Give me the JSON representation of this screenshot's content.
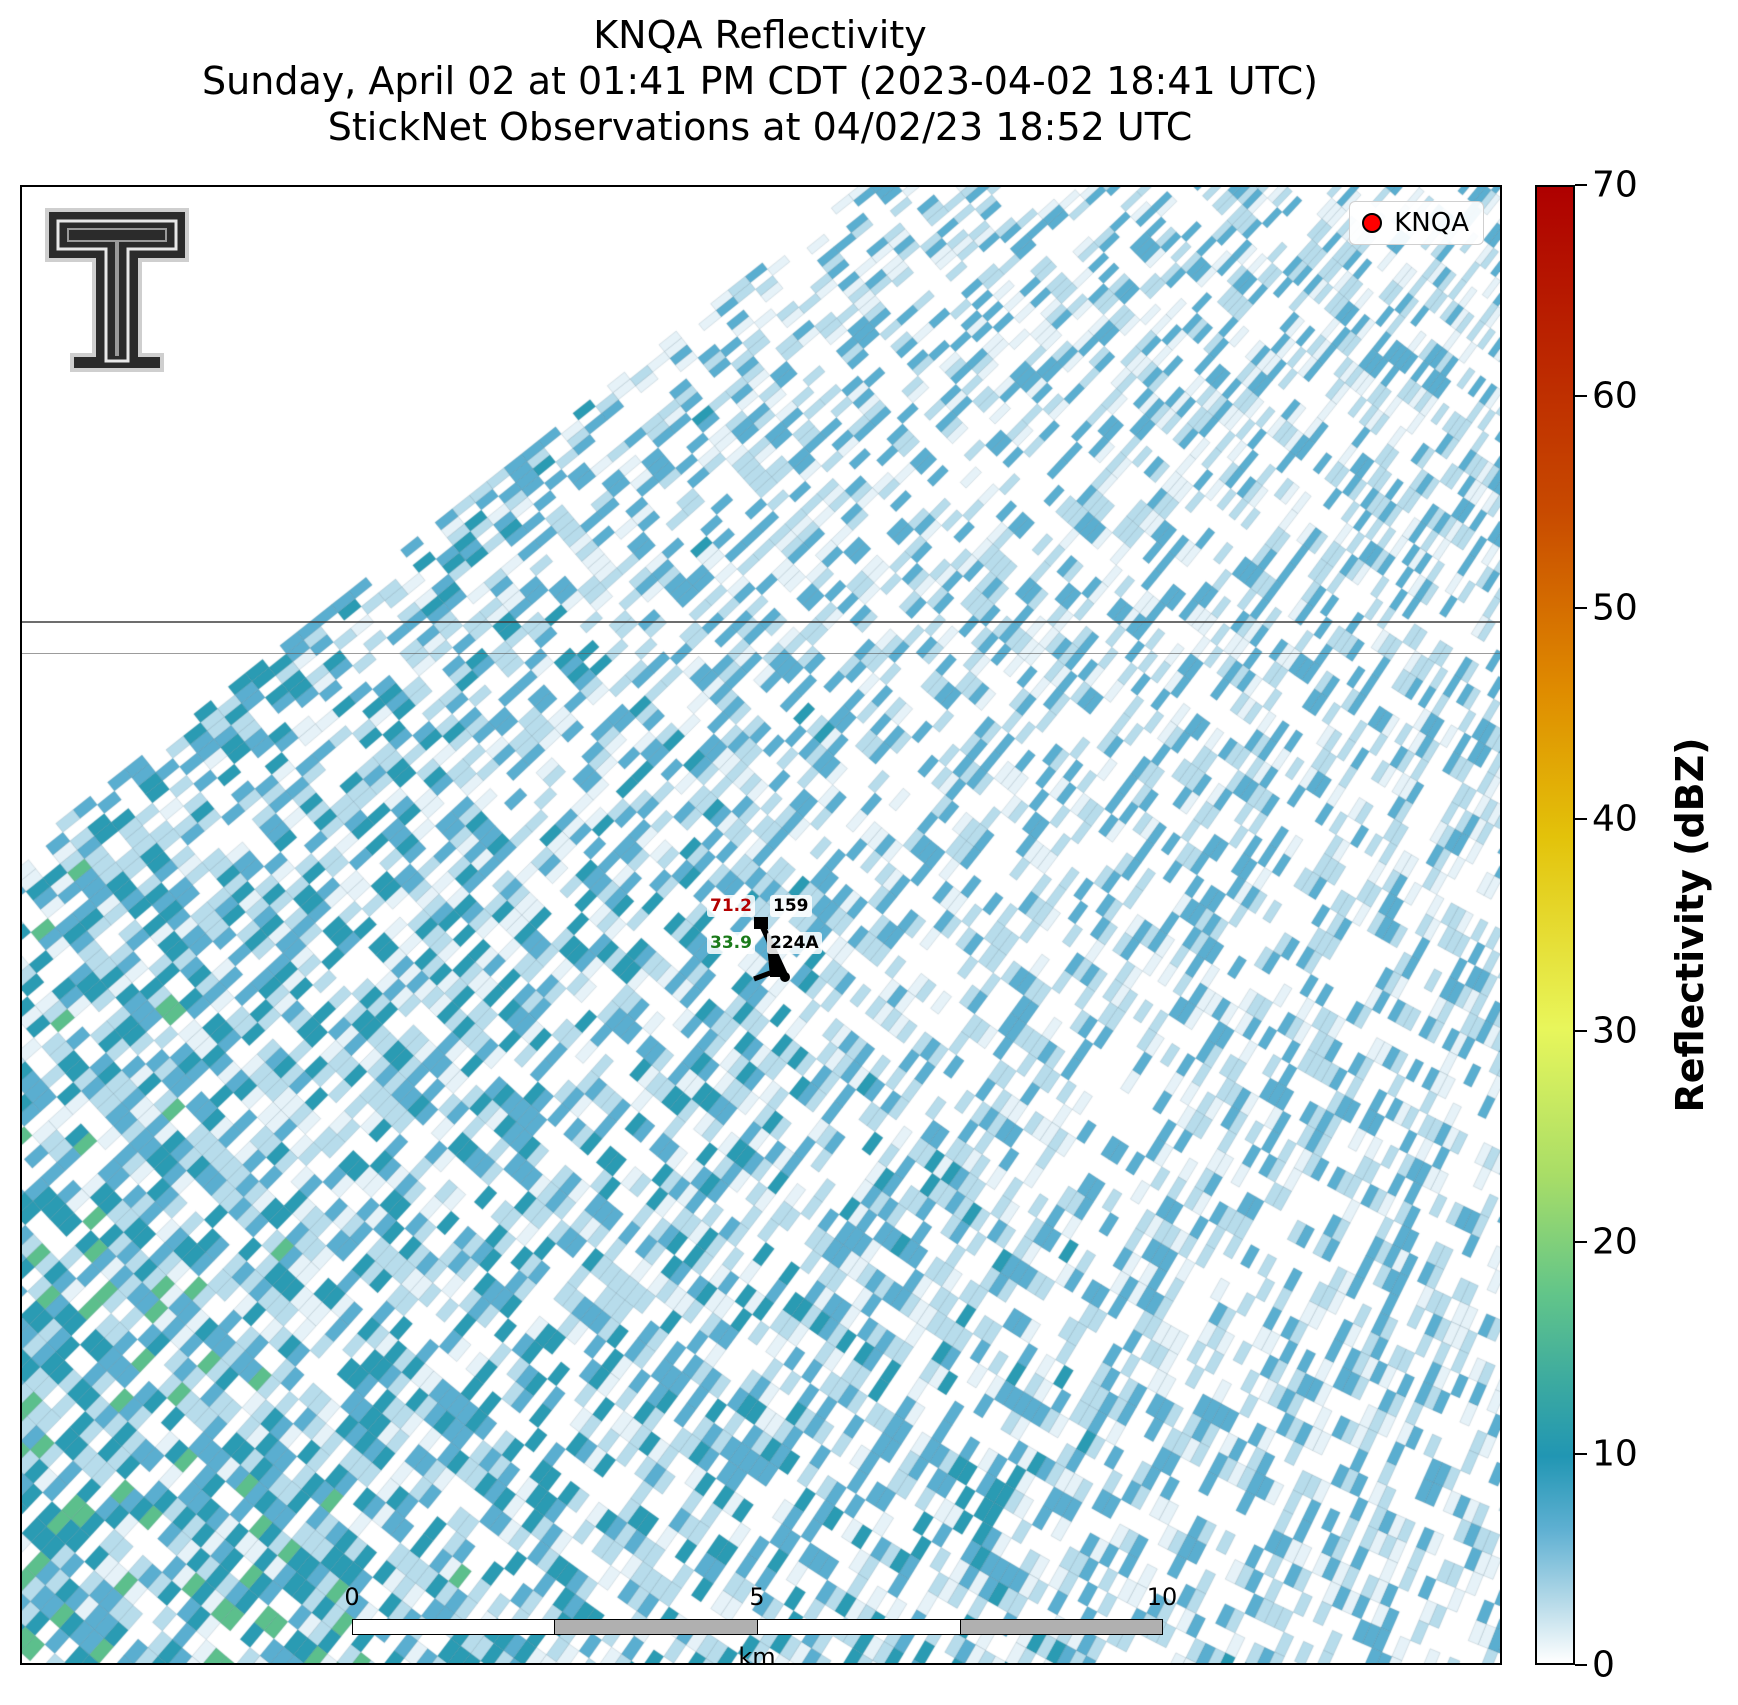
{
  "title": {
    "line1": "KNQA Reflectivity",
    "line2": "Sunday, April 02 at 01:41 PM CDT (2023-04-02 18:41 UTC)",
    "line3": "StickNet Observations at 04/02/23 18:52 UTC"
  },
  "legend": {
    "label": "KNQA",
    "marker_color": "#ff0000"
  },
  "station": {
    "temperature": "71.2",
    "wind_direction": "159",
    "dewpoint": "33.9",
    "id": "224A",
    "temperature_color": "#b30000",
    "dewpoint_color": "#1a7a1a"
  },
  "scalebar": {
    "ticks": [
      "0",
      "5",
      "10"
    ],
    "unit": "km"
  },
  "colorbar": {
    "title": "Reflectivity (dBZ)",
    "ticks": [
      "0",
      "10",
      "20",
      "30",
      "40",
      "50",
      "60",
      "70"
    ],
    "min": 0,
    "max": 70
  },
  "logo": {
    "name": "texas-tech-double-t-logo"
  },
  "colors": {
    "light": "#e6f2f8",
    "low": "#b7dceb",
    "mid": "#5aaed0",
    "teal": "#2a9bb3",
    "green": "#5cbf8c"
  }
}
